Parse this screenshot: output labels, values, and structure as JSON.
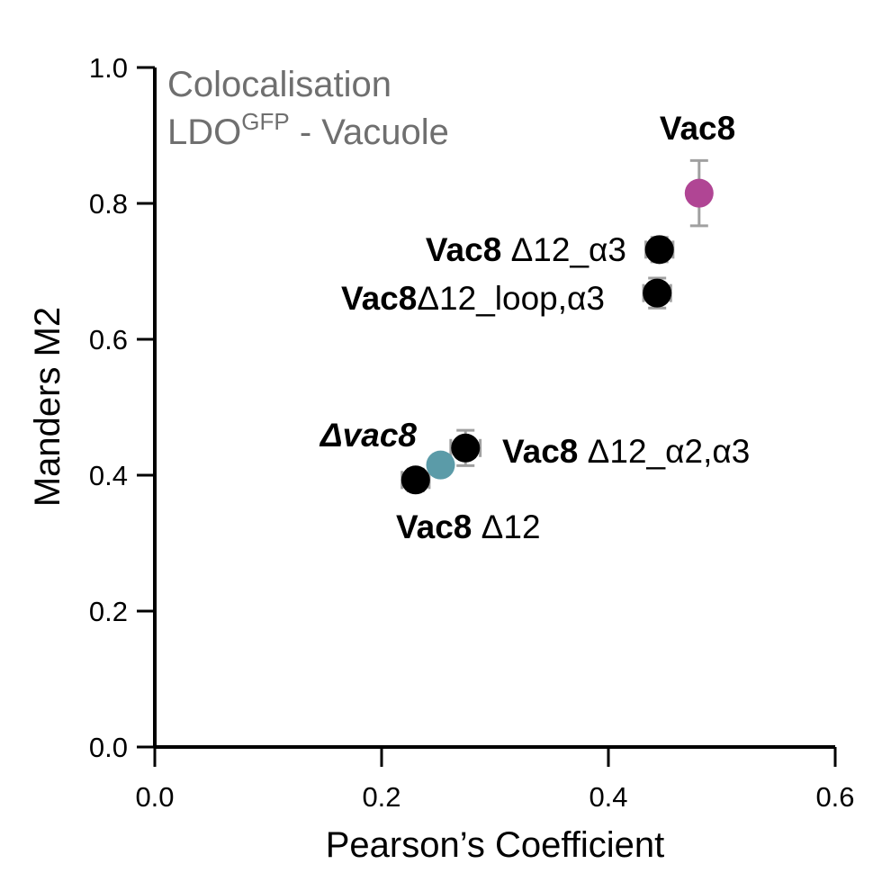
{
  "chart_data": {
    "type": "scatter",
    "xlabel": "Pearson’s Coefficient",
    "ylabel": "Manders M2",
    "xlim": [
      0.0,
      0.6
    ],
    "ylim": [
      0.0,
      1.0
    ],
    "x_ticks": [
      "0.0",
      "0.2",
      "0.4",
      "0.6"
    ],
    "y_ticks": [
      "0.0",
      "0.2",
      "0.4",
      "0.6",
      "0.8",
      "1.0"
    ],
    "x_tick_values": [
      0.0,
      0.2,
      0.4,
      0.6
    ],
    "y_tick_values": [
      0.0,
      0.2,
      0.4,
      0.6,
      0.8,
      1.0
    ],
    "grid": false,
    "annotation": {
      "line1": "Colocalisation",
      "line2_main": "LDO",
      "line2_sup": "GFP",
      "line2_rest": " - Vacuole"
    },
    "points": [
      {
        "label_bold": "Vac8",
        "label_rest": "",
        "x": 0.48,
        "y": 0.815,
        "x_err": 0.005,
        "y_err": 0.048,
        "color": "#b04594",
        "label_color": "#b04594"
      },
      {
        "label_bold": "Vac8",
        "label_rest": " Δ12_α3",
        "x": 0.445,
        "y": 0.732,
        "x_err": 0.012,
        "y_err": 0.018,
        "color": "#000000",
        "label_color": "#000000"
      },
      {
        "label_bold": "Vac8",
        "label_rest": "Δ12_loop,α3",
        "x": 0.443,
        "y": 0.668,
        "x_err": 0.012,
        "y_err": 0.022,
        "color": "#000000",
        "label_color": "#000000"
      },
      {
        "label_bold": "Δvac8",
        "label_rest": "",
        "x": 0.252,
        "y": 0.415,
        "x_err": 0.008,
        "y_err": 0.008,
        "color": "#5b9ba8",
        "label_color": "#5b9ba8"
      },
      {
        "label_bold": "Vac8",
        "label_rest": " Δ12_α2,α3",
        "x": 0.274,
        "y": 0.44,
        "x_err": 0.013,
        "y_err": 0.026,
        "color": "#000000",
        "label_color": "#000000"
      },
      {
        "label_bold": "Vac8",
        "label_rest": " Δ12",
        "x": 0.23,
        "y": 0.393,
        "x_err": 0.012,
        "y_err": 0.016,
        "color": "#000000",
        "label_color": "#000000"
      }
    ]
  }
}
